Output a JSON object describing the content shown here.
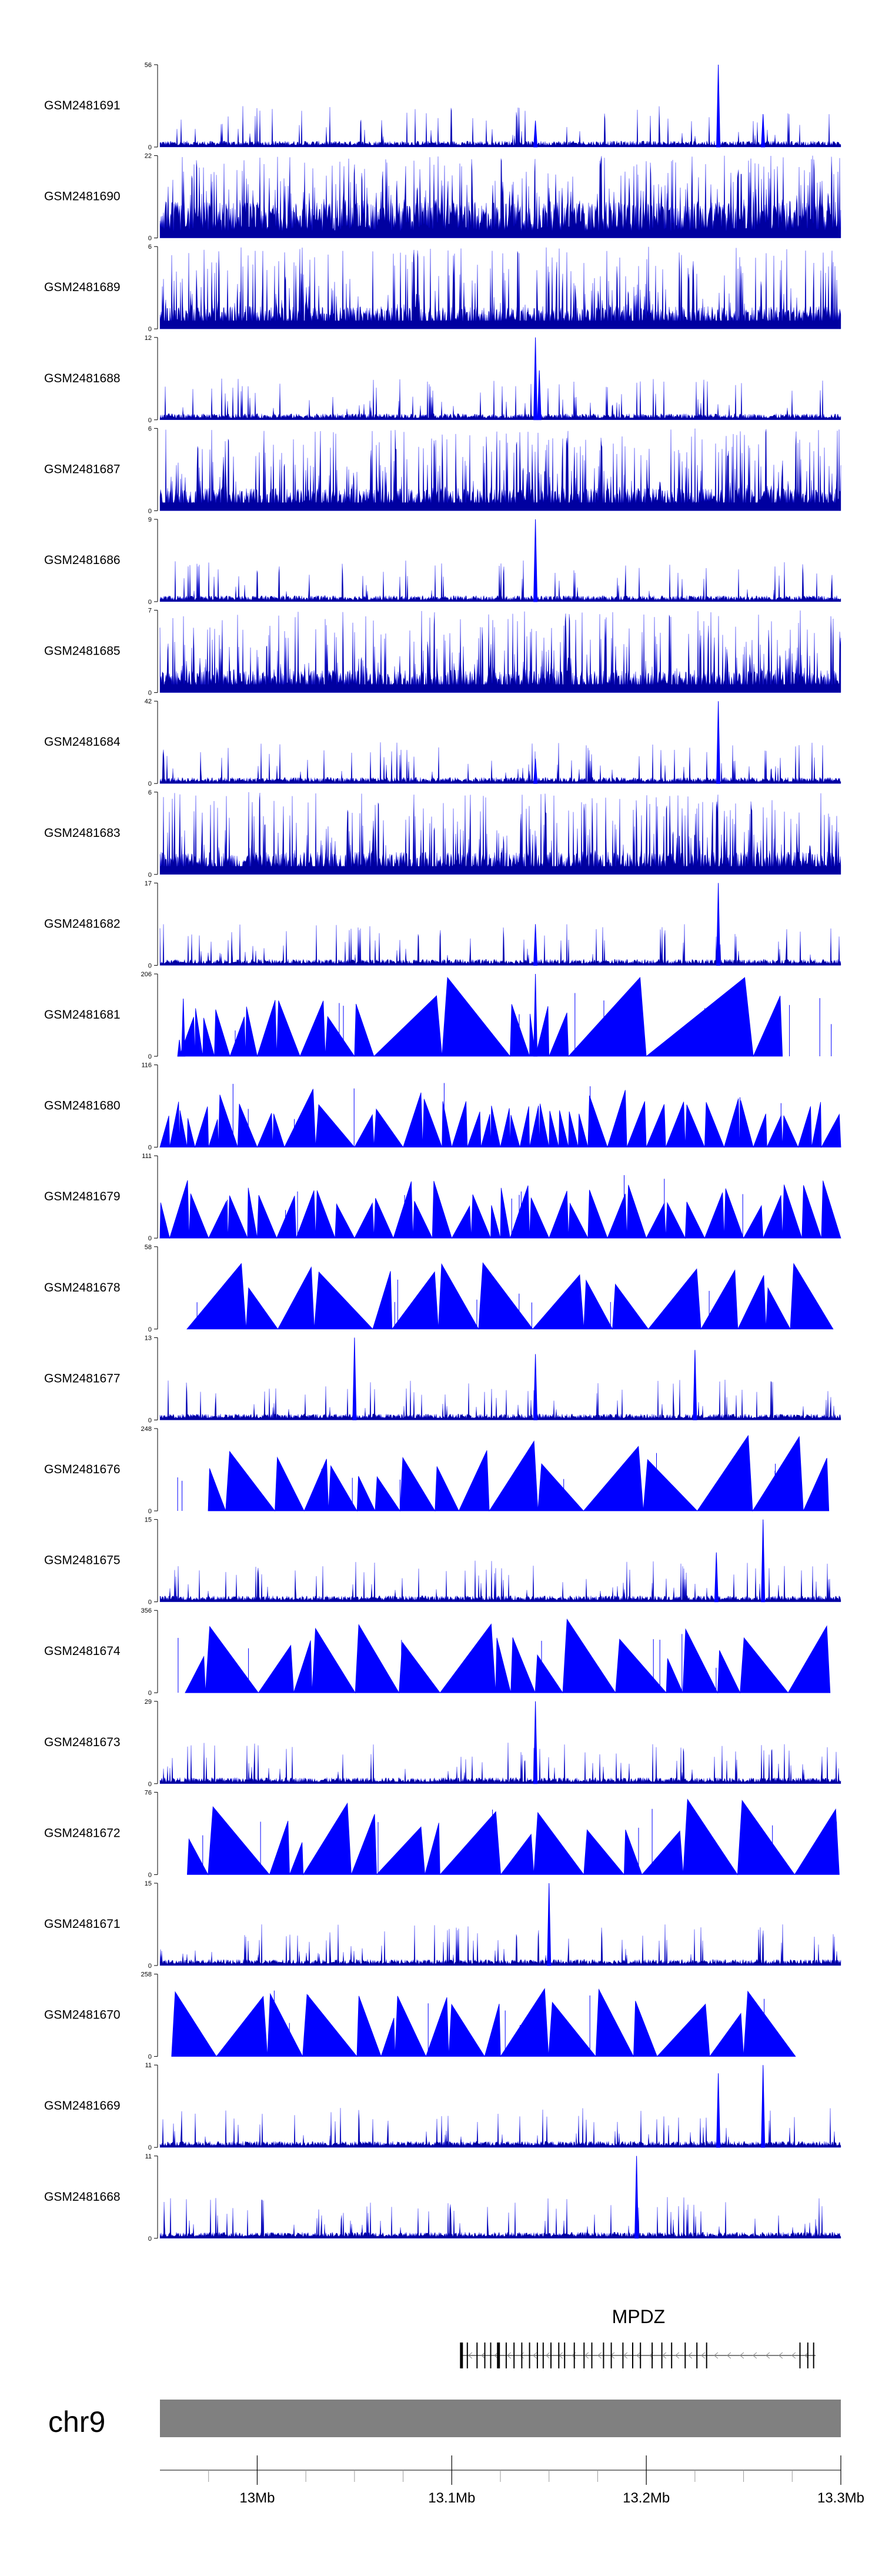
{
  "chart_data": {
    "type": "area",
    "genome": "chr9",
    "x_axis": {
      "range_mb": [
        12.95,
        13.3
      ],
      "tick_labels": [
        {
          "value": 13.0,
          "label": "13Mb"
        },
        {
          "value": 13.1,
          "label": "13.1Mb"
        },
        {
          "value": 13.2,
          "label": "13.2Mb"
        },
        {
          "value": 13.3,
          "label": "13.3Mb"
        }
      ],
      "minor_ticks": [
        12.975,
        13.025,
        13.05,
        13.075,
        13.125,
        13.15,
        13.175,
        13.225,
        13.25,
        13.275
      ]
    },
    "tracks": [
      {
        "name": "GSM2481691",
        "ymax": 56,
        "ymin": 0,
        "style": "dense",
        "peaks": [
          [
            13.143,
            0.32
          ],
          [
            13.237,
            1.0
          ],
          [
            13.26,
            0.4
          ]
        ]
      },
      {
        "name": "GSM2481690",
        "ymax": 22,
        "ymin": 0,
        "style": "spikes",
        "peaks": []
      },
      {
        "name": "GSM2481689",
        "ymax": 6,
        "ymin": 0,
        "style": "dense-high",
        "peaks": []
      },
      {
        "name": "GSM2481688",
        "ymax": 12,
        "ymin": 0,
        "style": "dense",
        "peaks": [
          [
            13.143,
            1.0
          ],
          [
            13.145,
            0.6
          ]
        ]
      },
      {
        "name": "GSM2481687",
        "ymax": 6,
        "ymin": 0,
        "style": "dense-high",
        "peaks": []
      },
      {
        "name": "GSM2481686",
        "ymax": 9,
        "ymin": 0,
        "style": "dense",
        "peaks": [
          [
            13.143,
            1.0
          ]
        ]
      },
      {
        "name": "GSM2481685",
        "ymax": 7,
        "ymin": 0,
        "style": "dense-high",
        "peaks": []
      },
      {
        "name": "GSM2481684",
        "ymax": 42,
        "ymin": 0,
        "style": "dense",
        "peaks": [
          [
            13.143,
            0.3
          ],
          [
            13.237,
            1.0
          ]
        ]
      },
      {
        "name": "GSM2481683",
        "ymax": 6,
        "ymin": 0,
        "style": "dense-high",
        "peaks": []
      },
      {
        "name": "GSM2481682",
        "ymax": 17,
        "ymin": 0,
        "style": "dense",
        "peaks": [
          [
            13.143,
            0.5
          ],
          [
            13.237,
            1.0
          ]
        ]
      },
      {
        "name": "GSM2481681",
        "ymax": 206,
        "ymin": 0,
        "style": "triangles",
        "peaks": [
          [
            12.96,
            0.2
          ],
          [
            12.962,
            0.7
          ],
          [
            13.143,
            1.0
          ]
        ]
      },
      {
        "name": "GSM2481680",
        "ymax": 116,
        "ymin": 0,
        "style": "triangles",
        "peaks": []
      },
      {
        "name": "GSM2481679",
        "ymax": 111,
        "ymin": 0,
        "style": "triangles",
        "peaks": []
      },
      {
        "name": "GSM2481678",
        "ymax": 58,
        "ymin": 0,
        "style": "triangles",
        "peaks": []
      },
      {
        "name": "GSM2481677",
        "ymax": 13,
        "ymin": 0,
        "style": "dense",
        "peaks": [
          [
            13.05,
            1.0
          ],
          [
            13.143,
            0.8
          ],
          [
            13.225,
            0.85
          ]
        ]
      },
      {
        "name": "GSM2481676",
        "ymax": 248,
        "ymin": 0,
        "style": "triangles",
        "peaks": []
      },
      {
        "name": "GSM2481675",
        "ymax": 15,
        "ymin": 0,
        "style": "dense",
        "peaks": [
          [
            13.236,
            0.6
          ],
          [
            13.26,
            1.0
          ]
        ]
      },
      {
        "name": "GSM2481674",
        "ymax": 356,
        "ymin": 0,
        "style": "triangles",
        "peaks": []
      },
      {
        "name": "GSM2481673",
        "ymax": 29,
        "ymin": 0,
        "style": "dense",
        "peaks": [
          [
            13.143,
            1.0
          ]
        ]
      },
      {
        "name": "GSM2481672",
        "ymax": 76,
        "ymin": 0,
        "style": "triangles",
        "peaks": []
      },
      {
        "name": "GSM2481671",
        "ymax": 15,
        "ymin": 0,
        "style": "dense",
        "peaks": [
          [
            13.15,
            1.0
          ]
        ]
      },
      {
        "name": "GSM2481670",
        "ymax": 258,
        "ymin": 0,
        "style": "triangles",
        "peaks": []
      },
      {
        "name": "GSM2481669",
        "ymax": 11,
        "ymin": 0,
        "style": "dense",
        "peaks": [
          [
            13.237,
            0.9
          ],
          [
            13.26,
            1.0
          ]
        ]
      },
      {
        "name": "GSM2481668",
        "ymax": 11,
        "ymin": 0,
        "style": "dense",
        "peaks": [
          [
            13.195,
            1.0
          ]
        ]
      }
    ],
    "triangle_tracks": {
      "GSM2481681": [
        12.96,
        12.968,
        12.972,
        12.978,
        12.986,
        12.994,
        13.0,
        13.01,
        13.022,
        13.035,
        13.05,
        13.06,
        13.095,
        13.13,
        13.14,
        13.143,
        13.15,
        13.16,
        13.2,
        13.255,
        13.27
      ],
      "GSM2481680": [
        12.95,
        12.955,
        12.96,
        12.964,
        12.968,
        12.975,
        12.98,
        12.99,
        13.0,
        13.008,
        13.014,
        13.03,
        13.05,
        13.06,
        13.075,
        13.085,
        13.095,
        13.1,
        13.108,
        13.115,
        13.12,
        13.125,
        13.13,
        13.135,
        13.14,
        13.145,
        13.15,
        13.155,
        13.16,
        13.165,
        13.17,
        13.18,
        13.19,
        13.2,
        13.21,
        13.22,
        13.23,
        13.24,
        13.248,
        13.255,
        13.262,
        13.27,
        13.278,
        13.285,
        13.29,
        13.3
      ],
      "GSM2481679": [
        12.95,
        12.955,
        12.965,
        12.975,
        12.985,
        12.995,
        13.0,
        13.01,
        13.02,
        13.03,
        13.04,
        13.05,
        13.06,
        13.07,
        13.08,
        13.09,
        13.1,
        13.11,
        13.12,
        13.125,
        13.13,
        13.14,
        13.15,
        13.16,
        13.17,
        13.18,
        13.19,
        13.2,
        13.21,
        13.22,
        13.23,
        13.24,
        13.25,
        13.26,
        13.27,
        13.28,
        13.29,
        13.3
      ]
    },
    "gene": {
      "name": "MPDZ",
      "start_mb": 13.105,
      "end_mb": 13.287,
      "strand": "-"
    },
    "chromosome_label": "chr9"
  }
}
